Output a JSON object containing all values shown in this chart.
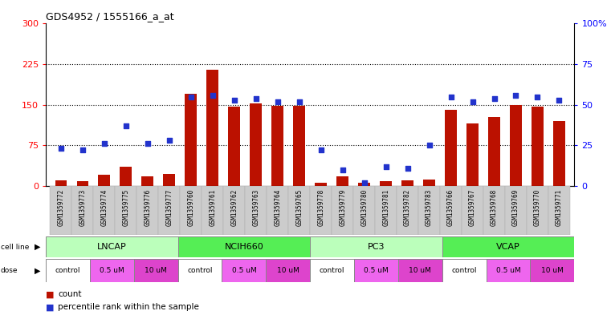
{
  "title": "GDS4952 / 1555166_a_at",
  "samples": [
    "GSM1359772",
    "GSM1359773",
    "GSM1359774",
    "GSM1359775",
    "GSM1359776",
    "GSM1359777",
    "GSM1359760",
    "GSM1359761",
    "GSM1359762",
    "GSM1359763",
    "GSM1359764",
    "GSM1359765",
    "GSM1359778",
    "GSM1359779",
    "GSM1359780",
    "GSM1359781",
    "GSM1359782",
    "GSM1359783",
    "GSM1359766",
    "GSM1359767",
    "GSM1359768",
    "GSM1359769",
    "GSM1359770",
    "GSM1359771"
  ],
  "counts": [
    10,
    8,
    20,
    35,
    18,
    22,
    170,
    215,
    147,
    152,
    148,
    148,
    5,
    17,
    5,
    8,
    10,
    12,
    140,
    115,
    128,
    150,
    147,
    120
  ],
  "percentiles": [
    23,
    22,
    26,
    37,
    26,
    28,
    55,
    56,
    53,
    54,
    52,
    52,
    22,
    10,
    2,
    12,
    11,
    25,
    55,
    52,
    54,
    56,
    55,
    53
  ],
  "cell_lines": [
    {
      "name": "LNCAP",
      "start": 0,
      "end": 6,
      "color": "#bbffbb"
    },
    {
      "name": "NCIH660",
      "start": 6,
      "end": 12,
      "color": "#55ee55"
    },
    {
      "name": "PC3",
      "start": 12,
      "end": 18,
      "color": "#bbffbb"
    },
    {
      "name": "VCAP",
      "start": 18,
      "end": 24,
      "color": "#55ee55"
    }
  ],
  "doses": [
    {
      "label": "control",
      "start": 0,
      "end": 2,
      "color": "#ffffff"
    },
    {
      "label": "0.5 uM",
      "start": 2,
      "end": 4,
      "color": "#ee66ee"
    },
    {
      "label": "10 uM",
      "start": 4,
      "end": 6,
      "color": "#dd44cc"
    },
    {
      "label": "control",
      "start": 6,
      "end": 8,
      "color": "#ffffff"
    },
    {
      "label": "0.5 uM",
      "start": 8,
      "end": 10,
      "color": "#ee66ee"
    },
    {
      "label": "10 uM",
      "start": 10,
      "end": 12,
      "color": "#dd44cc"
    },
    {
      "label": "control",
      "start": 12,
      "end": 14,
      "color": "#ffffff"
    },
    {
      "label": "0.5 uM",
      "start": 14,
      "end": 16,
      "color": "#ee66ee"
    },
    {
      "label": "10 uM",
      "start": 16,
      "end": 18,
      "color": "#dd44cc"
    },
    {
      "label": "control",
      "start": 18,
      "end": 20,
      "color": "#ffffff"
    },
    {
      "label": "0.5 uM",
      "start": 20,
      "end": 22,
      "color": "#ee66ee"
    },
    {
      "label": "10 uM",
      "start": 22,
      "end": 24,
      "color": "#dd44cc"
    }
  ],
  "ylim_left": [
    0,
    300
  ],
  "ylim_right": [
    0,
    100
  ],
  "yticks_left": [
    0,
    75,
    150,
    225,
    300
  ],
  "yticks_right": [
    0,
    25,
    50,
    75,
    100
  ],
  "bar_color": "#bb1100",
  "dot_color": "#2233cc",
  "bg_color": "#ffffff",
  "chart_bg": "#ffffff",
  "gsm_bg": "#cccccc",
  "cell_line_border": "#888888",
  "dose_border": "#888888"
}
